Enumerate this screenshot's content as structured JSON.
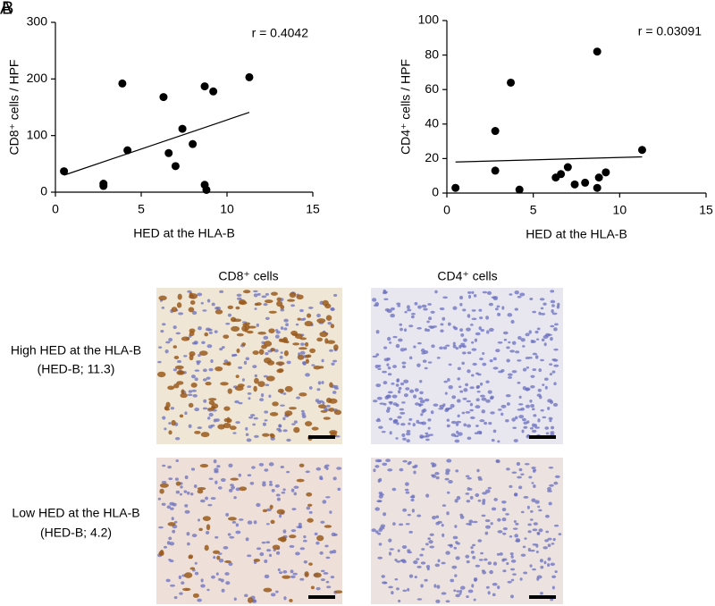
{
  "chart_data": [
    {
      "type": "scatter",
      "annotation": "r = 0.4042",
      "x_label": "HED at the HLA-B",
      "y_label": "CD8⁺ cells / HPF",
      "x": [
        0.5,
        2.8,
        2.8,
        3.9,
        4.2,
        6.3,
        6.6,
        7.0,
        7.4,
        8.0,
        8.7,
        8.7,
        8.8,
        9.2,
        11.3
      ],
      "values": [
        37,
        15,
        11,
        192,
        74,
        168,
        69,
        46,
        112,
        85,
        187,
        13,
        4,
        178,
        203
      ],
      "color": "#000000",
      "trend_line": {
        "x": [
          0.5,
          11.3
        ],
        "values": [
          30,
          141
        ]
      },
      "xlim": [
        0,
        15
      ],
      "xticks": [
        0,
        5,
        10,
        15
      ],
      "ylim": [
        0,
        300
      ],
      "yticks": [
        0,
        100,
        200,
        300
      ]
    },
    {
      "type": "scatter",
      "annotation": "r = 0.03091",
      "x_label": "HED at the HLA-B",
      "y_label": "CD4⁺ cells / HPF",
      "x": [
        0.5,
        2.8,
        2.8,
        3.7,
        4.2,
        6.3,
        6.6,
        7.0,
        7.4,
        8.0,
        8.7,
        8.7,
        8.8,
        9.2,
        11.3
      ],
      "values": [
        3,
        36,
        13,
        64,
        2,
        9,
        11,
        15,
        5,
        6,
        82,
        3,
        9,
        12,
        25
      ],
      "color": "#000000",
      "trend_line": {
        "x": [
          0.5,
          11.3
        ],
        "values": [
          18,
          21
        ]
      },
      "xlim": [
        0,
        15
      ],
      "xticks": [
        0,
        5,
        10,
        15
      ],
      "ylim": [
        0,
        100
      ],
      "yticks": [
        0,
        20,
        40,
        60,
        80,
        100
      ]
    }
  ],
  "figure": {
    "panel_labels": [
      "A",
      "B"
    ],
    "column_titles": [
      "CD8⁺ cells",
      "CD4⁺ cells"
    ],
    "row_labels": [
      [
        "High HED at the HLA-B",
        "(HED-B; 11.3)"
      ],
      [
        "Low HED at the HLA-B",
        "(HED-B; 4.2)"
      ]
    ]
  }
}
